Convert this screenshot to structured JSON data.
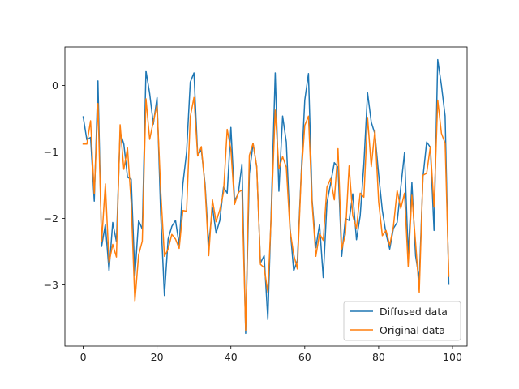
{
  "chart_data": {
    "type": "line",
    "title": "",
    "xlabel": "",
    "ylabel": "",
    "xlim": [
      -4.95,
      103.95
    ],
    "ylim": [
      -3.92,
      0.58
    ],
    "xticks": [
      0,
      20,
      40,
      60,
      80,
      100
    ],
    "yticks": [
      -3,
      -2,
      -1,
      0
    ],
    "grid": false,
    "legend_position": "lower-right",
    "series": [
      {
        "name": "Diffused data",
        "color": "#1f77b4",
        "values": [
          -0.47,
          -0.82,
          -0.78,
          -1.74,
          0.07,
          -2.42,
          -2.09,
          -2.79,
          -2.06,
          -2.35,
          -0.7,
          -0.88,
          -1.38,
          -1.41,
          -2.87,
          -2.03,
          -2.16,
          0.22,
          -0.12,
          -0.58,
          -0.18,
          -1.95,
          -3.16,
          -2.31,
          -2.12,
          -2.03,
          -2.4,
          -1.48,
          -1.0,
          0.05,
          0.19,
          -1.05,
          -0.97,
          -1.48,
          -2.4,
          -1.83,
          -2.22,
          -2.03,
          -1.53,
          -1.62,
          -0.63,
          -1.73,
          -1.63,
          -1.18,
          -3.73,
          -1.33,
          -0.87,
          -1.22,
          -2.67,
          -2.56,
          -3.52,
          -1.73,
          0.19,
          -1.59,
          -0.46,
          -0.85,
          -2.12,
          -2.79,
          -2.63,
          -1.37,
          -0.22,
          0.18,
          -1.73,
          -2.44,
          -2.09,
          -2.89,
          -1.77,
          -1.47,
          -1.16,
          -1.23,
          -2.57,
          -2.0,
          -2.03,
          -1.63,
          -2.32,
          -1.96,
          -1.18,
          -0.11,
          -0.55,
          -0.73,
          -1.34,
          -1.88,
          -2.23,
          -2.46,
          -2.15,
          -2.06,
          -1.53,
          -1.01,
          -2.55,
          -1.46,
          -2.56,
          -2.92,
          -1.38,
          -0.85,
          -0.93,
          -2.18,
          0.39,
          0.0,
          -0.46,
          -2.99
        ]
      },
      {
        "name": "Original data",
        "color": "#ff7f0e",
        "values": [
          -0.88,
          -0.88,
          -0.53,
          -1.63,
          -0.27,
          -2.35,
          -1.48,
          -2.67,
          -2.39,
          -2.58,
          -0.59,
          -1.26,
          -0.94,
          -1.77,
          -3.25,
          -2.55,
          -2.34,
          -0.2,
          -0.81,
          -0.54,
          -0.3,
          -1.59,
          -2.57,
          -2.46,
          -2.24,
          -2.31,
          -2.45,
          -1.88,
          -1.89,
          -0.47,
          -0.18,
          -1.06,
          -0.92,
          -1.53,
          -2.56,
          -1.72,
          -2.05,
          -1.87,
          -1.61,
          -0.66,
          -0.96,
          -1.79,
          -1.61,
          -1.57,
          -3.68,
          -1.05,
          -0.87,
          -1.22,
          -2.69,
          -2.74,
          -3.11,
          -1.86,
          -0.37,
          -1.25,
          -1.07,
          -1.23,
          -2.17,
          -2.54,
          -2.76,
          -1.4,
          -0.6,
          -0.46,
          -1.78,
          -2.57,
          -2.23,
          -2.33,
          -1.53,
          -1.4,
          -1.72,
          -0.95,
          -2.46,
          -2.24,
          -1.21,
          -1.96,
          -2.15,
          -1.62,
          -1.68,
          -0.48,
          -1.22,
          -0.67,
          -1.75,
          -2.26,
          -2.18,
          -2.4,
          -2.12,
          -1.58,
          -1.85,
          -1.62,
          -2.72,
          -1.65,
          -2.36,
          -3.11,
          -1.35,
          -1.32,
          -0.92,
          -1.83,
          -0.22,
          -0.72,
          -0.87,
          -2.87
        ]
      }
    ]
  }
}
